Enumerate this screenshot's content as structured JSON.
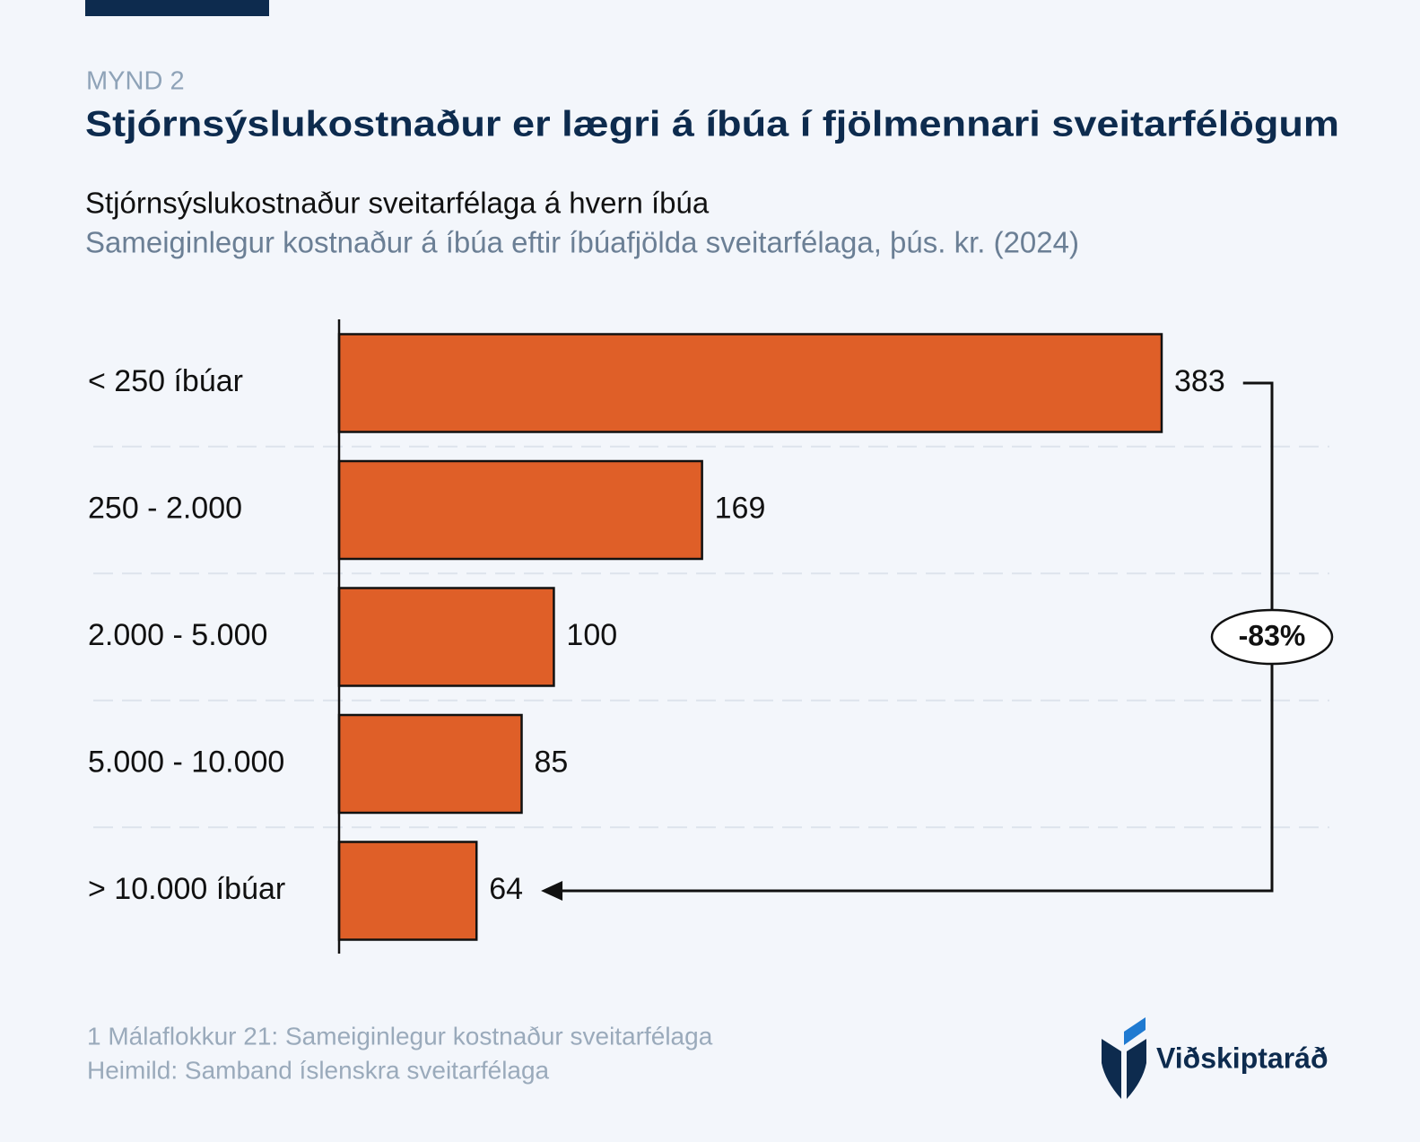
{
  "chart_data": {
    "type": "bar",
    "orientation": "horizontal",
    "kicker": "MYND 2",
    "title": "Stjórnsýslukostnaður er lægri á íbúa í fjölmennari sveitarfélögum",
    "subtitle": "Stjórnsýslukostnaður sveitarfélaga á hvern íbúa",
    "subtitle2": "Sameiginlegur kostnaður á íbúa eftir íbúafjölda sveitarfélaga, þús. kr. (2024)",
    "categories": [
      "< 250 íbúar",
      "250 - 2.000",
      "2.000 - 5.000",
      "5.000 - 10.000",
      "> 10.000 íbúar"
    ],
    "values": [
      383,
      169,
      100,
      85,
      64
    ],
    "color": "#df5f28",
    "annotation": "-83%",
    "footnotes": [
      "1 Málaflokkur 21: Sameiginlegur kostnaður sveitarfélaga",
      "Heimild: Samband íslenskra sveitarfélaga"
    ],
    "brand": "Viðskiptaráð"
  }
}
